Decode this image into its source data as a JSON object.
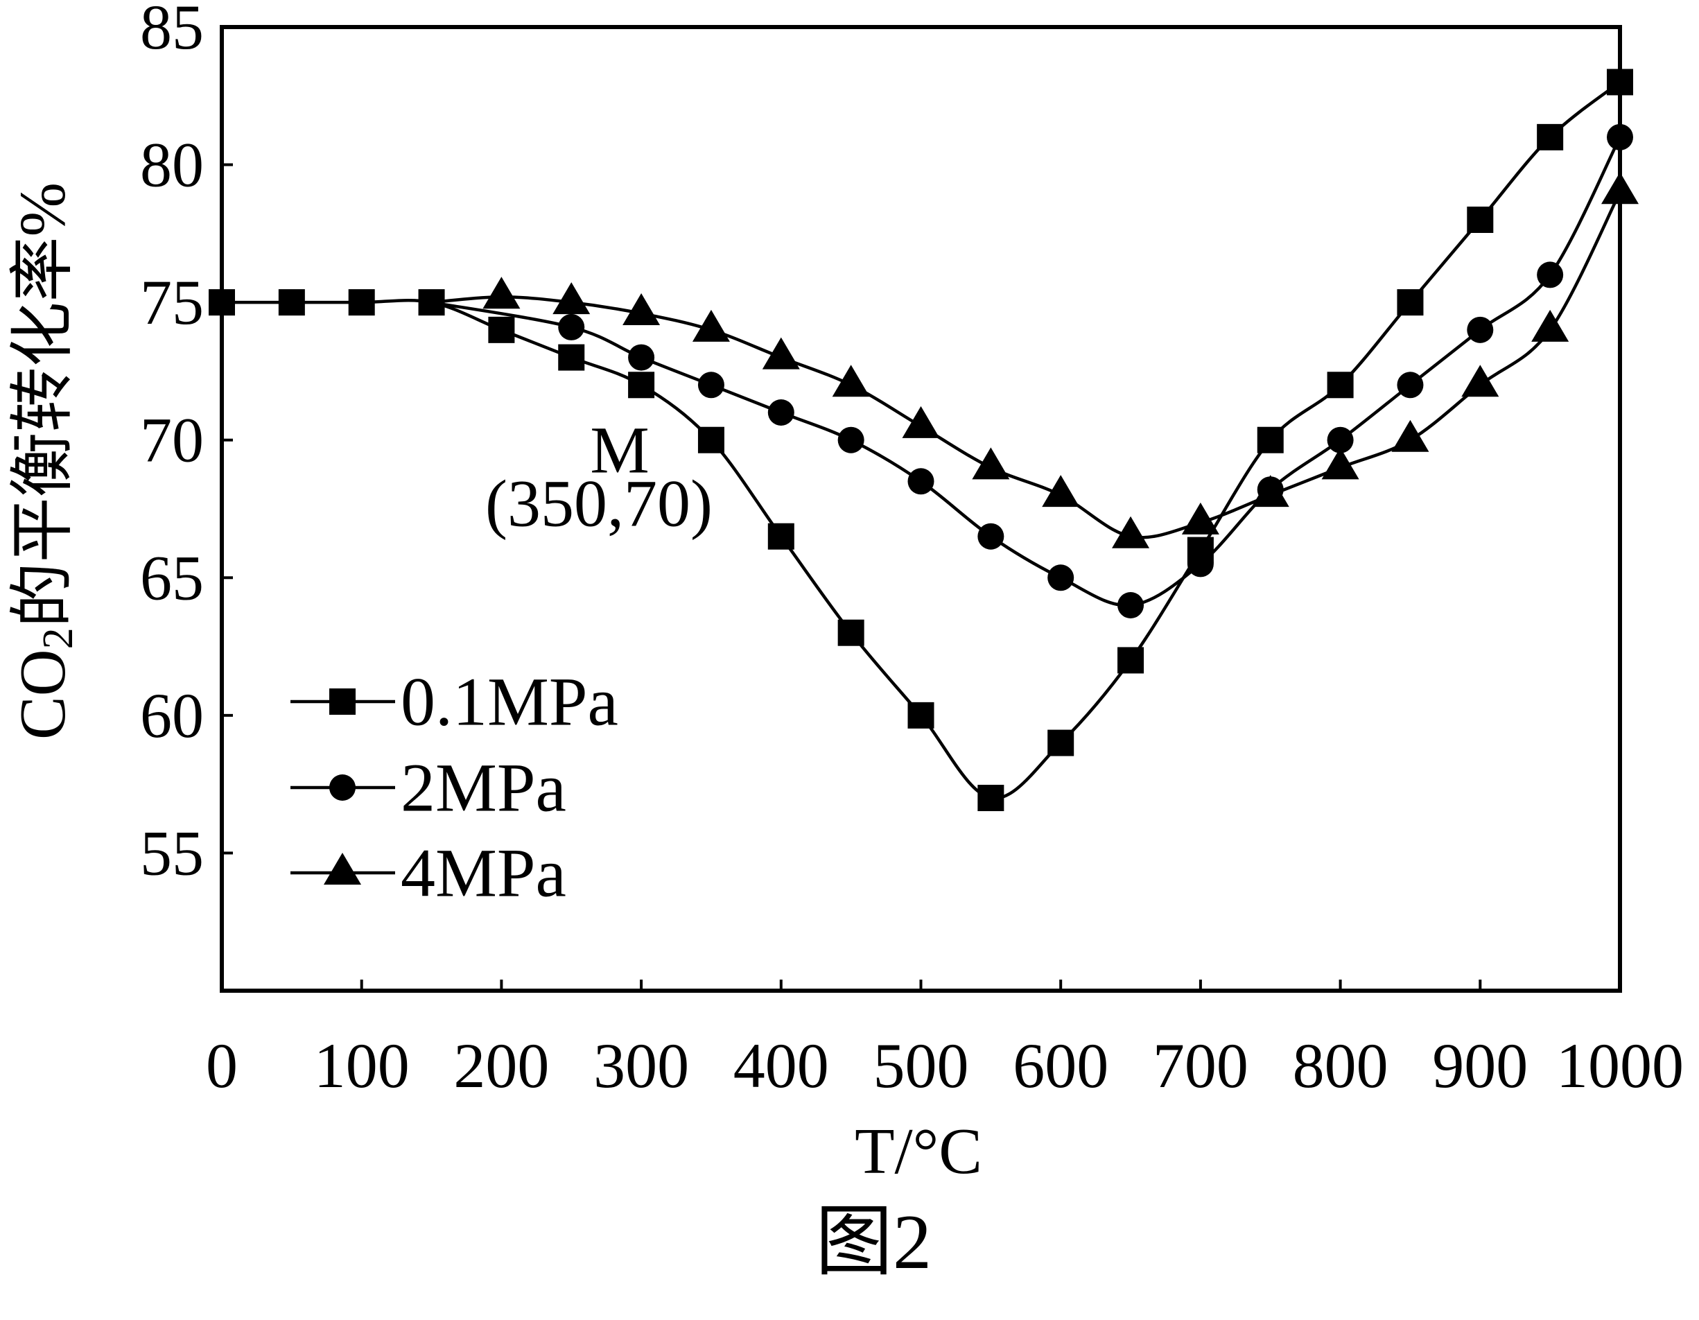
{
  "figure": {
    "caption": "图2"
  },
  "colors": {
    "ink": "#000000",
    "background": "#ffffff"
  },
  "chart_data": {
    "type": "line",
    "xlabel": "T/°C",
    "ylabel": {
      "main": "CO",
      "subscript": "2",
      "rest": "的平衡转化率%"
    },
    "xlim": [
      0,
      1000
    ],
    "ylim": [
      50,
      85
    ],
    "x_ticks": [
      0,
      100,
      200,
      300,
      400,
      500,
      600,
      700,
      800,
      900,
      1000
    ],
    "y_ticks": [
      55,
      60,
      65,
      70,
      75,
      80,
      85
    ],
    "grid": false,
    "legend_position": "lower-left",
    "series": [
      {
        "name": "0.1MPa",
        "marker": "square",
        "x": [
          0,
          50,
          100,
          150,
          200,
          250,
          300,
          350,
          400,
          450,
          500,
          550,
          600,
          650,
          700,
          750,
          800,
          850,
          900,
          950,
          1000
        ],
        "y": [
          75,
          75,
          75,
          75,
          74,
          73,
          72,
          70,
          66.5,
          63,
          60,
          57,
          59,
          62,
          66,
          70,
          72,
          75,
          78,
          81,
          83
        ]
      },
      {
        "name": "2MPa",
        "marker": "circle",
        "x": [
          150,
          250,
          300,
          350,
          400,
          450,
          500,
          550,
          600,
          650,
          700,
          750,
          800,
          850,
          900,
          950,
          1000
        ],
        "y": [
          75,
          74.1,
          73,
          72,
          71,
          70,
          68.5,
          66.5,
          65,
          64,
          65.5,
          68.2,
          70,
          72,
          74,
          76,
          81
        ]
      },
      {
        "name": "4MPa",
        "marker": "triangle",
        "x": [
          150,
          200,
          250,
          300,
          350,
          400,
          450,
          500,
          550,
          600,
          650,
          700,
          750,
          800,
          850,
          900,
          950,
          1000
        ],
        "y": [
          75,
          75.2,
          75,
          74.6,
          74,
          73,
          72,
          70.5,
          69,
          68,
          66.5,
          67,
          68,
          69,
          70,
          72,
          74,
          79
        ]
      }
    ],
    "annotations": [
      {
        "label": "M",
        "coordinates": "(350,70)",
        "x": 350,
        "y": 70
      }
    ]
  }
}
